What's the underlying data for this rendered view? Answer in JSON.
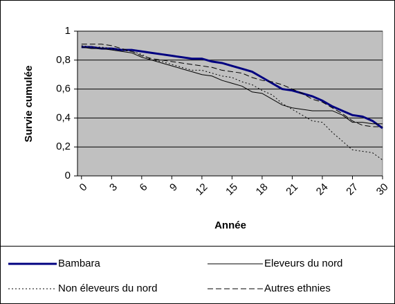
{
  "chart_data": {
    "type": "line",
    "xlabel": "Année",
    "ylabel": "Survie cumulée",
    "x": [
      0,
      1,
      2,
      3,
      4,
      5,
      6,
      7,
      8,
      9,
      10,
      11,
      12,
      13,
      14,
      15,
      16,
      17,
      18,
      19,
      20,
      21,
      22,
      23,
      24,
      25,
      26,
      27,
      28,
      29,
      30
    ],
    "series": [
      {
        "name": "Bambara",
        "color": "#000080",
        "style": "solid",
        "width": 3,
        "values": [
          0.89,
          0.89,
          0.88,
          0.88,
          0.87,
          0.87,
          0.86,
          0.85,
          0.84,
          0.83,
          0.82,
          0.81,
          0.81,
          0.79,
          0.78,
          0.76,
          0.74,
          0.72,
          0.68,
          0.64,
          0.6,
          0.59,
          0.57,
          0.55,
          0.52,
          0.48,
          0.45,
          0.42,
          0.41,
          0.38,
          0.33
        ]
      },
      {
        "name": "Eleveurs du nord",
        "color": "#000000",
        "style": "solid",
        "width": 1,
        "values": [
          0.89,
          0.88,
          0.88,
          0.87,
          0.86,
          0.85,
          0.82,
          0.8,
          0.78,
          0.76,
          0.74,
          0.72,
          0.7,
          0.69,
          0.66,
          0.64,
          0.62,
          0.58,
          0.57,
          0.53,
          0.49,
          0.47,
          0.46,
          0.45,
          0.45,
          0.45,
          0.42,
          0.37,
          0.37,
          0.36,
          0.36
        ]
      },
      {
        "name": "Non éleveurs du nord",
        "color": "#000000",
        "style": "dotted",
        "width": 1,
        "values": [
          0.9,
          0.89,
          0.89,
          0.88,
          0.87,
          0.86,
          0.84,
          0.8,
          0.79,
          0.77,
          0.75,
          0.73,
          0.73,
          0.71,
          0.69,
          0.68,
          0.65,
          0.63,
          0.59,
          0.56,
          0.5,
          0.46,
          0.42,
          0.38,
          0.37,
          0.3,
          0.24,
          0.18,
          0.17,
          0.16,
          0.11
        ]
      },
      {
        "name": "Autres ethnies",
        "color": "#000000",
        "style": "dashed",
        "width": 1,
        "values": [
          0.91,
          0.91,
          0.91,
          0.9,
          0.88,
          0.86,
          0.83,
          0.81,
          0.8,
          0.79,
          0.78,
          0.77,
          0.76,
          0.75,
          0.73,
          0.72,
          0.71,
          0.68,
          0.66,
          0.65,
          0.63,
          0.6,
          0.57,
          0.53,
          0.51,
          0.47,
          0.43,
          0.38,
          0.35,
          0.34,
          0.34
        ]
      }
    ],
    "xlim": [
      -0.4,
      30
    ],
    "xticks": [
      0,
      3,
      6,
      9,
      12,
      15,
      18,
      21,
      24,
      27,
      30
    ],
    "ylim": [
      0,
      1
    ],
    "yticks": [
      0,
      {
        "value": 0.2,
        "label": "0,2"
      },
      {
        "value": 0.4,
        "label": "0,4"
      },
      {
        "value": 0.6,
        "label": "0,6"
      },
      {
        "value": 0.8,
        "label": "0,8"
      },
      1
    ],
    "grid": true,
    "plot_background": "#c0c0c0",
    "legend": "bottom"
  }
}
